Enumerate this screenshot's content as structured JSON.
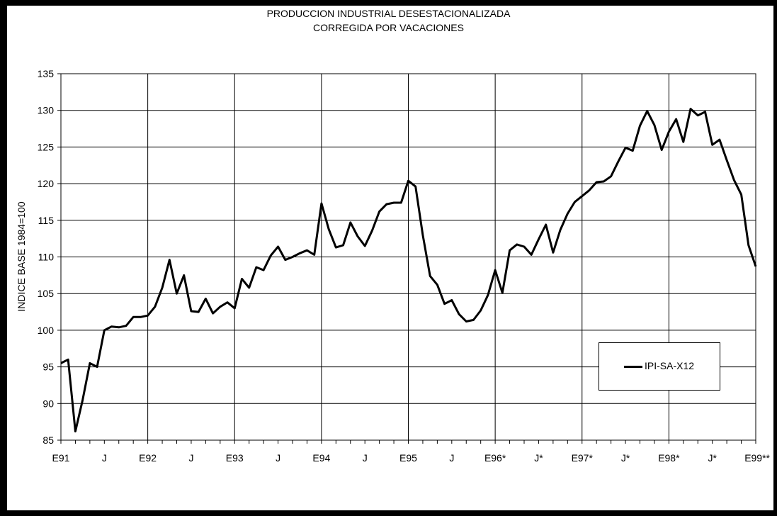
{
  "chart_data": {
    "type": "line",
    "title": "PRODUCCION INDUSTRIAL DESESTACIONALIZADA",
    "subtitle": "CORREGIDA POR VACACIONES",
    "ylabel": "INDICE BASE 1984=100",
    "xlabel": "",
    "ylim": [
      85,
      135
    ],
    "yticks": [
      85,
      90,
      95,
      100,
      105,
      110,
      115,
      120,
      125,
      130,
      135
    ],
    "xtick_labels": [
      "E91",
      "J",
      "E92",
      "J",
      "E93",
      "J",
      "E94",
      "J",
      "E95",
      "J",
      "E96*",
      "J*",
      "E97*",
      "J*",
      "E98*",
      "J*",
      "E99**"
    ],
    "grid": true,
    "legend_position": "bottom-right",
    "line_color": "#000000",
    "series": [
      {
        "name": "IPI-SA-X12",
        "values": [
          95.5,
          96.0,
          86.2,
          90.5,
          95.5,
          95.0,
          100.0,
          100.5,
          100.4,
          100.6,
          101.8,
          101.8,
          102.0,
          103.2,
          105.8,
          109.6,
          105.0,
          107.5,
          102.6,
          102.5,
          104.3,
          102.3,
          103.2,
          103.8,
          103.0,
          107.0,
          105.8,
          108.6,
          108.2,
          110.2,
          111.4,
          109.6,
          110.0,
          110.5,
          110.9,
          110.3,
          117.3,
          113.8,
          111.3,
          111.6,
          114.7,
          112.8,
          111.5,
          113.6,
          116.2,
          117.2,
          117.4,
          117.4,
          120.4,
          119.6,
          113.0,
          107.4,
          106.2,
          103.6,
          104.1,
          102.2,
          101.2,
          101.4,
          102.7,
          104.8,
          108.2,
          105.1,
          110.9,
          111.7,
          111.4,
          110.3,
          112.4,
          114.4,
          110.6,
          113.7,
          115.9,
          117.5,
          118.3,
          119.1,
          120.2,
          120.3,
          121.0,
          123.0,
          124.9,
          124.5,
          127.9,
          129.9,
          128.0,
          124.6,
          127.1,
          128.8,
          125.7,
          130.2,
          129.3,
          129.8,
          125.3,
          126.0,
          123.2,
          120.5,
          118.5,
          111.6,
          108.7
        ]
      }
    ]
  }
}
